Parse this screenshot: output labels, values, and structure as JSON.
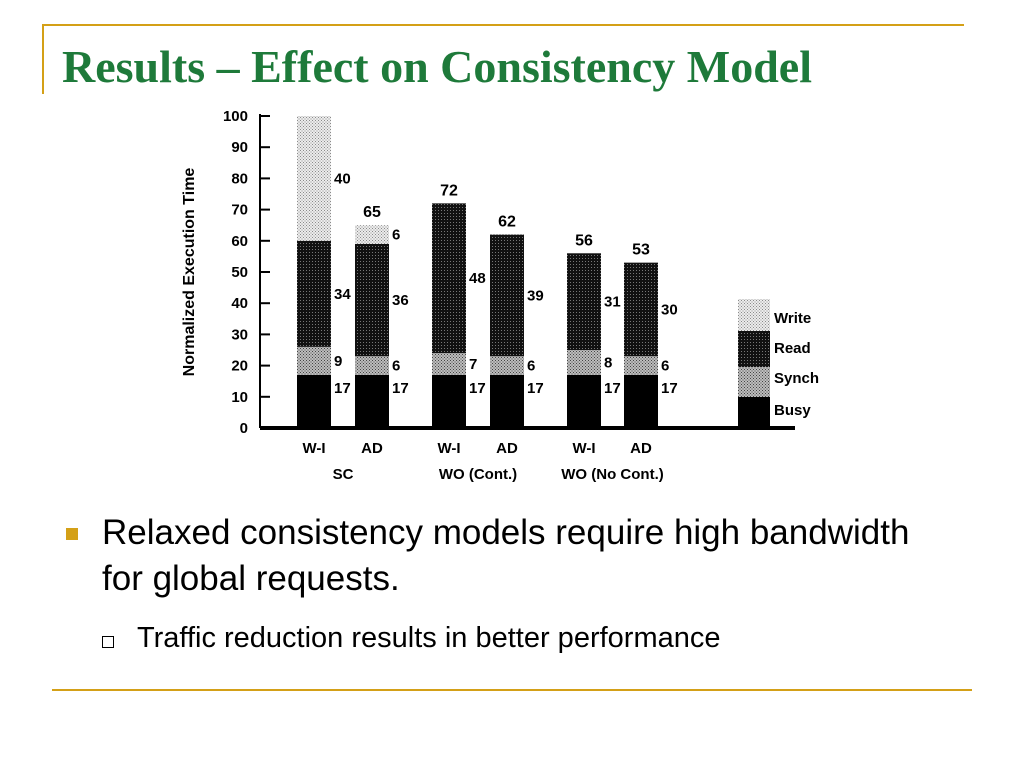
{
  "title": "Results – Effect on Consistency Model",
  "bullet": "Relaxed consistency models require high bandwidth for global requests.",
  "sub_bullet": "Traffic reduction results in better performance",
  "colors": {
    "title": "#1e7a3a",
    "rule": "#d4a017",
    "busy": "#000000",
    "synch": "#9a9a9a",
    "read": "#1e1e1e",
    "write": "#d8d8d8"
  },
  "chart_data": {
    "type": "bar",
    "stacked": true,
    "ylabel": "Normalized Execution Time",
    "xlabel": "",
    "title": "",
    "ylim": [
      0,
      100
    ],
    "yticks": [
      0,
      10,
      20,
      30,
      40,
      50,
      60,
      70,
      80,
      90,
      100
    ],
    "bars": [
      {
        "label": "W-I",
        "busy": 17,
        "synch": 9,
        "read": 34,
        "write": 40,
        "total": null
      },
      {
        "label": "AD",
        "busy": 17,
        "synch": 6,
        "read": 36,
        "write": 6,
        "total": 65
      },
      {
        "label": "W-I",
        "busy": 17,
        "synch": 7,
        "read": 48,
        "write": 0,
        "total": 72
      },
      {
        "label": "AD",
        "busy": 17,
        "synch": 6,
        "read": 39,
        "write": 0,
        "total": 62
      },
      {
        "label": "W-I",
        "busy": 17,
        "synch": 8,
        "read": 31,
        "write": 0,
        "total": 56
      },
      {
        "label": "AD",
        "busy": 17,
        "synch": 6,
        "read": 30,
        "write": 0,
        "total": 53
      }
    ],
    "groups": [
      {
        "label": "SC",
        "bars": [
          0,
          1
        ]
      },
      {
        "label": "WO (Cont.)",
        "bars": [
          2,
          3
        ]
      },
      {
        "label": "WO (No Cont.)",
        "bars": [
          4,
          5
        ]
      }
    ],
    "legend": [
      "Write",
      "Read",
      "Synch",
      "Busy"
    ],
    "legend_position": "right"
  }
}
